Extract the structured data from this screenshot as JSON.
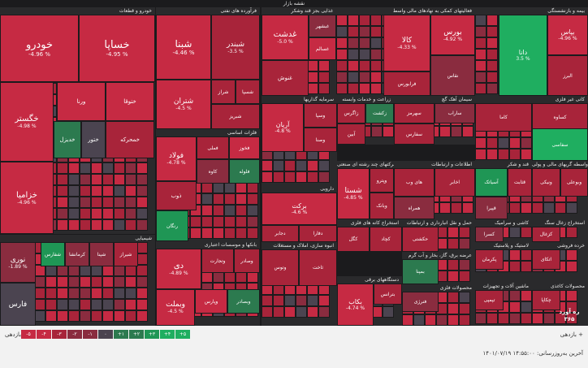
{
  "header": {
    "title": "نقشه بازار"
  },
  "colors": {
    "neg_strong": "#c62a43",
    "neg_mid": "#a8243a",
    "neg_weak": "#8a2c3f",
    "neutral": "#4b4450",
    "pos_weak": "#2c7a4f",
    "pos_mid": "#1f9655",
    "pos_strong": "#1fae60"
  },
  "chart_data": {
    "type": "heatmap",
    "sectors": [
      {
        "name": "خودرو و قطعات",
        "tiles": [
          {
            "name": "خودرو",
            "change": "-4.96 %",
            "value": -4.96
          },
          {
            "name": "خساپا",
            "change": "-4.95 %",
            "value": -4.95
          },
          {
            "name": "خگستر",
            "change": "-4.98 %",
            "value": -4.98
          },
          {
            "name": "خزامیا",
            "change": "-4.96 %",
            "value": -4.96
          },
          {
            "name": "ختوقا",
            "change": "",
            "value": -4.9
          },
          {
            "name": "ورنا",
            "change": "",
            "value": -4.5
          },
          {
            "name": "خدیزل",
            "change": "",
            "value": 1.5
          },
          {
            "name": "ختور",
            "change": "",
            "value": -0.5
          },
          {
            "name": "خمحرکه",
            "change": "",
            "value": -2.5
          }
        ]
      },
      {
        "name": "شیمیایی",
        "tiles": [
          {
            "name": "نوری",
            "change": "-1.89 %",
            "value": -1.89
          },
          {
            "name": "فارس",
            "change": "",
            "value": -0.4
          },
          {
            "name": "شفارس",
            "change": "",
            "value": 2.0
          },
          {
            "name": "کرمانشا",
            "change": "",
            "value": -2.0
          },
          {
            "name": "شپنا",
            "change": "",
            "value": -1.5
          },
          {
            "name": "شیراز",
            "change": "",
            "value": -2.5
          }
        ]
      },
      {
        "name": "فرآورده های نفتی",
        "tiles": [
          {
            "name": "شبنا",
            "change": "-4.46 %",
            "value": -4.46
          },
          {
            "name": "شبندر",
            "change": "-3.5 %",
            "value": -3.5
          },
          {
            "name": "شتران",
            "change": "-4.5 %",
            "value": -4.5
          },
          {
            "name": "شراز",
            "change": "",
            "value": -2.6
          },
          {
            "name": "شسپا",
            "change": "",
            "value": -3.0
          },
          {
            "name": "شبریز",
            "change": "",
            "value": -2.8
          }
        ]
      },
      {
        "name": "فلزات اساسی",
        "tiles": [
          {
            "name": "فولاد",
            "change": "-4.78 %",
            "value": -4.78
          },
          {
            "name": "فملی",
            "change": "",
            "value": -3.6
          },
          {
            "name": "فخوز",
            "change": "",
            "value": -4.2
          },
          {
            "name": "ذوب",
            "change": "",
            "value": -3.0
          },
          {
            "name": "کاوه",
            "change": "",
            "value": -2.4
          },
          {
            "name": "فلوله",
            "change": "",
            "value": 1.2
          },
          {
            "name": "رنگان",
            "change": "",
            "value": 2.5
          }
        ]
      },
      {
        "name": "بانکها و موسسات اعتباری",
        "tiles": [
          {
            "name": "دی",
            "change": "-4.89 %",
            "value": -4.89
          },
          {
            "name": "وبملت",
            "change": "-4.5 %",
            "value": -4.5
          },
          {
            "name": "وتجارت",
            "change": "",
            "value": -3.8
          },
          {
            "name": "وصادر",
            "change": "",
            "value": -2.6
          },
          {
            "name": "وپارس",
            "change": "",
            "value": -4.0
          },
          {
            "name": "وبصادر",
            "change": "",
            "value": 1.6
          }
        ]
      },
      {
        "name": "غذایی بجز قند وشکر",
        "tiles": [
          {
            "name": "غدشت",
            "change": "-5.0 %",
            "value": -5.0
          },
          {
            "name": "غنوش",
            "change": "",
            "value": -3.5
          },
          {
            "name": "غبشهر",
            "change": "",
            "value": -2.0
          },
          {
            "name": "غسالم",
            "change": "",
            "value": -4.0
          }
        ]
      },
      {
        "name": "فعالیتهای کمکی به نهادهای مالی واسط",
        "tiles": [
          {
            "name": "بورس",
            "change": "-4.92 %",
            "value": -4.92
          },
          {
            "name": "کالا",
            "change": "-4.33 %",
            "value": -4.33
          },
          {
            "name": "فرابورس",
            "change": "",
            "value": -3.2
          },
          {
            "name": "نقاس",
            "change": "",
            "value": -2.0
          }
        ]
      },
      {
        "name": "بیمه و بازنشستگی",
        "tiles": [
          {
            "name": "بپاس",
            "change": "-4.96 %",
            "value": -4.96
          },
          {
            "name": "دانا",
            "change": "3.5 %",
            "value": 3.5
          },
          {
            "name": "البرز",
            "change": "",
            "value": -2.5
          }
        ]
      },
      {
        "name": "سرمایه گذاریها",
        "tiles": [
          {
            "name": "آریان",
            "change": "-4.8 %",
            "value": -4.8
          },
          {
            "name": "وسپا",
            "change": "",
            "value": -3.9
          },
          {
            "name": "وصنا",
            "change": "",
            "value": -2.8
          }
        ]
      },
      {
        "name": "زراعت و خدمات وابسته",
        "tiles": [
          {
            "name": "زاگرس",
            "change": "",
            "value": -3.0
          },
          {
            "name": "آبین",
            "change": "",
            "value": -3.4
          },
          {
            "name": "زکشت",
            "change": "",
            "value": 1.4
          }
        ]
      },
      {
        "name": "سیمان آهک گچ",
        "tiles": [
          {
            "name": "سهرمز",
            "change": "",
            "value": -3.6
          },
          {
            "name": "ساراب",
            "change": "",
            "value": -2.4
          },
          {
            "name": "سفارس",
            "change": "",
            "value": -3.2
          }
        ]
      },
      {
        "name": "کانی غیر فلزی",
        "tiles": [
          {
            "name": "کاما",
            "change": "",
            "value": -3.5
          },
          {
            "name": "کساوه",
            "change": "",
            "value": -2.8
          }
        ]
      },
      {
        "name": "سایر",
        "tiles": [
          {
            "name": "سفاسی",
            "change": "",
            "value": 3.0
          }
        ]
      },
      {
        "name": "شرکتهای چند رشته ای صنعتی",
        "tiles": [
          {
            "name": "شستا",
            "change": "-4.85 %",
            "value": -4.85
          },
          {
            "name": "وپترو",
            "change": "",
            "value": -3.0
          },
          {
            "name": "وبانک",
            "change": "",
            "value": -2.6
          }
        ]
      },
      {
        "name": "اطلاعات و ارتباطات",
        "tiles": [
          {
            "name": "های وب",
            "change": "",
            "value": -3.4
          },
          {
            "name": "اخابر",
            "change": "",
            "value": -3.6
          },
          {
            "name": "همراه",
            "change": "",
            "value": -2.2
          }
        ]
      },
      {
        "name": "قند و شکر",
        "tiles": [
          {
            "name": "آسیاتک",
            "change": "",
            "value": 2.6
          },
          {
            "name": "قثابت",
            "change": "",
            "value": -3.0
          },
          {
            "name": "قپیرا",
            "change": "",
            "value": -2.4
          }
        ]
      },
      {
        "name": "واسطه گریهای مالی و پولی",
        "tiles": [
          {
            "name": "ونیکی",
            "change": "",
            "value": -3.2
          },
          {
            "name": "وبوعلی",
            "change": "",
            "value": -2.8
          }
        ]
      },
      {
        "name": "دارویی",
        "tiles": [
          {
            "name": "برکت",
            "change": "-4.6 %",
            "value": -4.6
          },
          {
            "name": "دجابر",
            "change": "",
            "value": -3.0
          },
          {
            "name": "دفارا",
            "change": "",
            "value": -2.6
          }
        ]
      },
      {
        "name": "انبوه سازی، املاک و مستغلات",
        "tiles": [
          {
            "name": "وتوس",
            "change": "",
            "value": -3.4
          },
          {
            "name": "ثاخت",
            "change": "",
            "value": -2.6
          }
        ]
      },
      {
        "name": "استخراج کانه های فلزی",
        "tiles": [
          {
            "name": "کگل",
            "change": "",
            "value": -3.8
          },
          {
            "name": "کچاد",
            "change": "",
            "value": -3.2
          }
        ]
      },
      {
        "name": "حمل و نقل انبارداری و ارتباطات",
        "tiles": [
          {
            "name": "حکشتی",
            "change": "",
            "value": -3.0
          }
        ]
      },
      {
        "name": "عرضه برق، گاز، بخار و آب گرم",
        "tiles": [
          {
            "name": "بمپنا",
            "change": "",
            "value": 1.6
          }
        ]
      },
      {
        "name": "دستگاههای برقی",
        "tiles": [
          {
            "name": "بکاب",
            "change": "-4.74 %",
            "value": -4.74
          },
          {
            "name": "بترانس",
            "change": "",
            "value": -2.8
          }
        ]
      },
      {
        "name": "محصولات فلزی",
        "tiles": [
          {
            "name": "فنرژی",
            "change": "",
            "value": -2.4
          }
        ]
      },
      {
        "name": "لاستیک و پلاستیک",
        "tiles": [
          {
            "name": "پکرمان",
            "change": "",
            "value": -3.0
          }
        ]
      },
      {
        "name": "ماشین آلات و تجهیزات",
        "tiles": [
          {
            "name": "تپمپی",
            "change": "",
            "value": -2.6
          }
        ]
      },
      {
        "name": "خرده فروشی",
        "tiles": [
          {
            "name": "اتکای",
            "change": "",
            "value": -2.8
          }
        ]
      },
      {
        "name": "کاشی و سرامیک",
        "tiles": [
          {
            "name": "کسرا",
            "change": "",
            "value": -2.2
          }
        ]
      },
      {
        "name": "استخراج زغال سنگ",
        "tiles": [
          {
            "name": "کزغال",
            "change": "",
            "value": -3.6
          }
        ]
      },
      {
        "name": "محصولات کاغذی",
        "tiles": [
          {
            "name": "چکاپا",
            "change": "",
            "value": -3.0
          }
        ]
      }
    ]
  },
  "legend": {
    "left_label": "بازدهی -",
    "right_label": "بازدهی +",
    "steps": [
      "-۵",
      "-۴",
      "-۳",
      "-۲",
      "-۱",
      "۰",
      "+۱",
      "+۲",
      "+۳",
      "+۴",
      "+۵"
    ]
  },
  "footer": {
    "timestamp": "آخرین به‌روزرسانی: ۱۴:۵۵:۰۰ ۱۴۰۱/۰۷/۱۹"
  },
  "brand": {
    "name": "ره آورد ۳۶۵"
  }
}
